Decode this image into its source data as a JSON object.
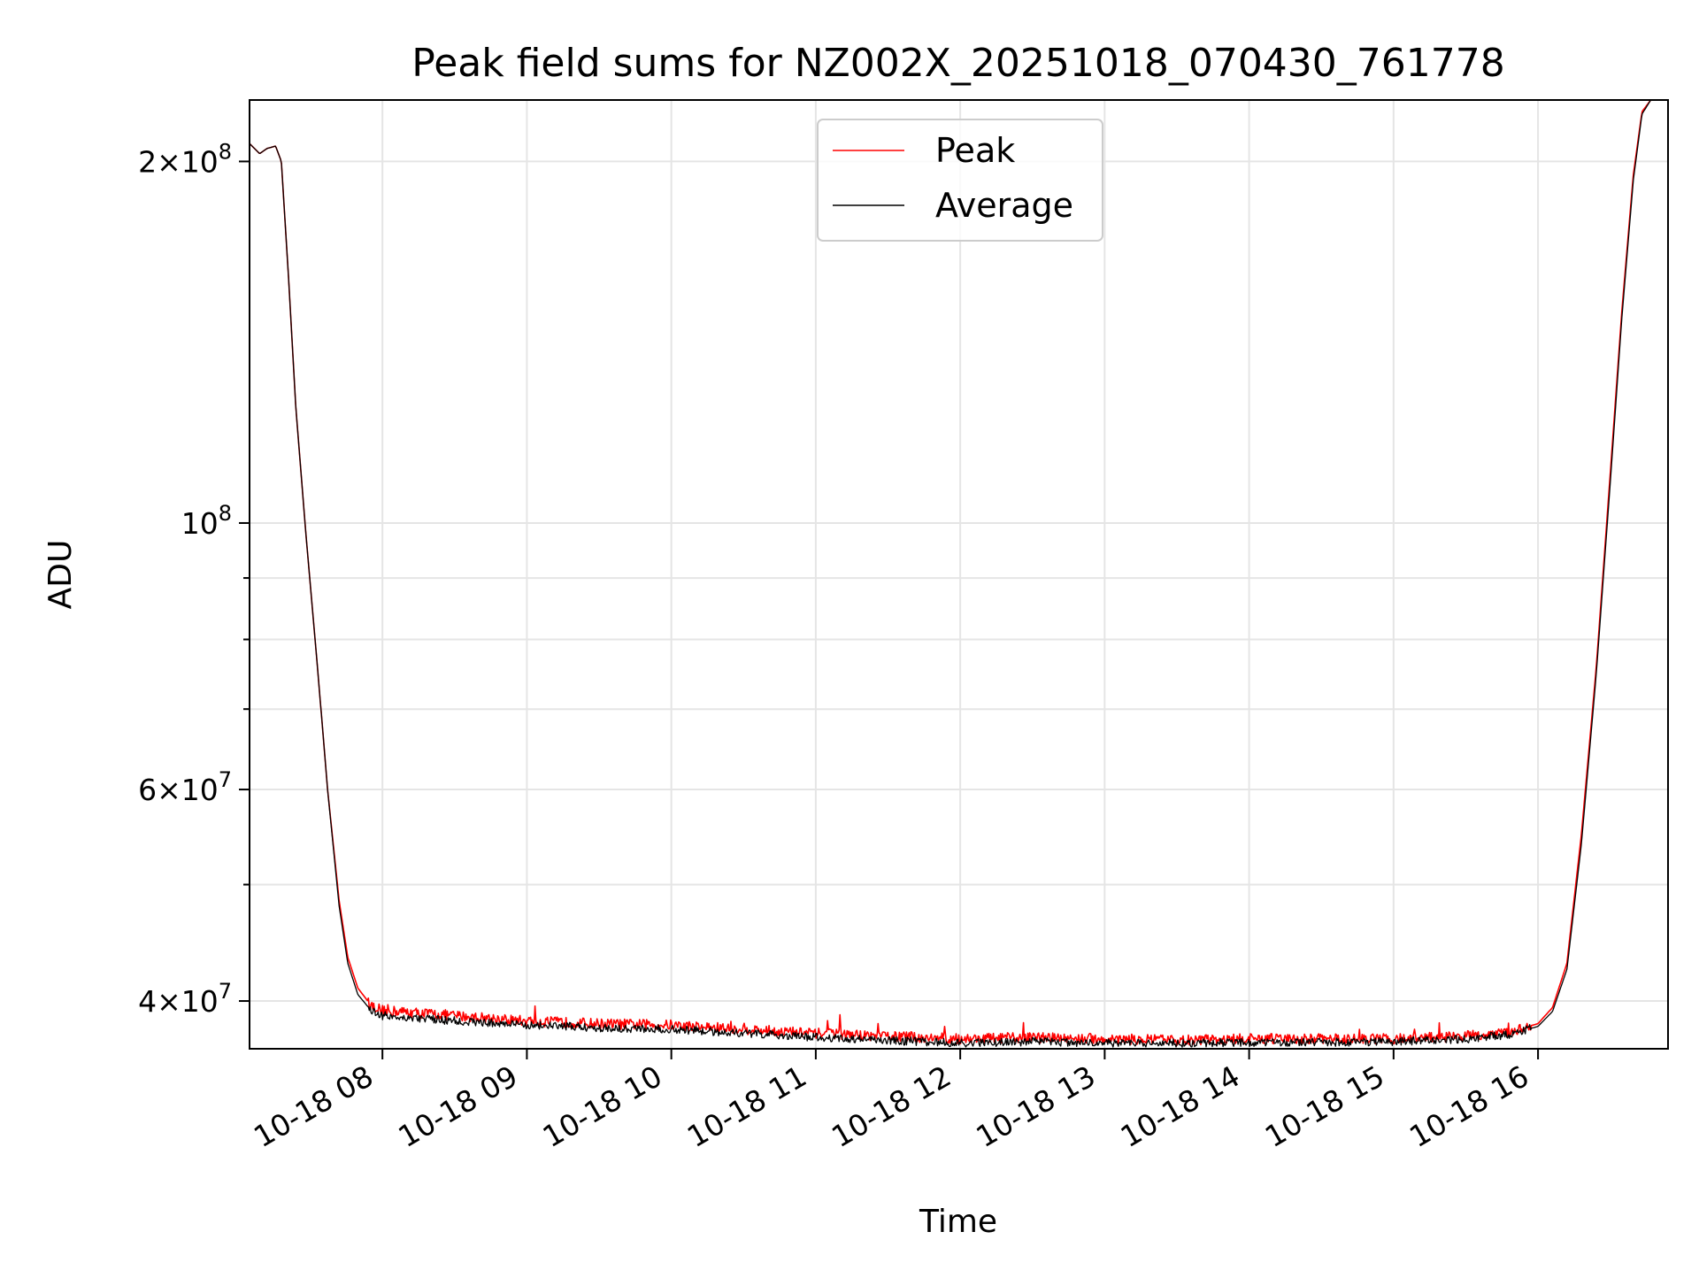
{
  "chart_data": {
    "type": "line",
    "title": "Peak field sums for NZ002X_20251018_070430_761778",
    "xlabel": "Time",
    "ylabel": "ADU",
    "yscale": "log",
    "grid": true,
    "legend_position": "top-center",
    "x_unit": "hours of 2025-10-18",
    "xlim": [
      7.08,
      16.9
    ],
    "ylim": [
      36500000,
      225000000
    ],
    "x_ticks": [
      {
        "value": 8,
        "label": "10-18 08"
      },
      {
        "value": 9,
        "label": "10-18 09"
      },
      {
        "value": 10,
        "label": "10-18 10"
      },
      {
        "value": 11,
        "label": "10-18 11"
      },
      {
        "value": 12,
        "label": "10-18 12"
      },
      {
        "value": 13,
        "label": "10-18 13"
      },
      {
        "value": 14,
        "label": "10-18 14"
      },
      {
        "value": 15,
        "label": "10-18 15"
      },
      {
        "value": 16,
        "label": "10-18 16"
      }
    ],
    "y_ticks_major": [
      {
        "value": 40000000,
        "mantissa": "4",
        "exponent": "7"
      },
      {
        "value": 60000000,
        "mantissa": "6",
        "exponent": "7"
      },
      {
        "value": 100000000,
        "mantissa": "",
        "exponent": "8"
      },
      {
        "value": 200000000,
        "mantissa": "2",
        "exponent": "8"
      }
    ],
    "y_ticks_minor": [
      50000000,
      70000000,
      80000000,
      90000000
    ],
    "series": [
      {
        "name": "Peak",
        "color": "#ff0000",
        "points": [
          [
            7.08,
            207000000
          ],
          [
            7.15,
            203000000
          ],
          [
            7.2,
            205000000
          ],
          [
            7.26,
            206000000
          ],
          [
            7.3,
            200000000
          ],
          [
            7.35,
            160000000
          ],
          [
            7.4,
            125000000
          ],
          [
            7.47,
            98000000
          ],
          [
            7.55,
            76000000
          ],
          [
            7.62,
            60000000
          ],
          [
            7.7,
            48500000
          ],
          [
            7.76,
            43500000
          ],
          [
            7.83,
            41000000
          ],
          [
            7.92,
            39700000
          ],
          [
            8.0,
            39300000
          ],
          [
            8.5,
            38900000
          ],
          [
            9.0,
            38500000
          ],
          [
            9.5,
            38300000
          ],
          [
            10.0,
            38200000
          ],
          [
            10.5,
            37900000
          ],
          [
            11.0,
            37600000
          ],
          [
            11.5,
            37400000
          ],
          [
            12.0,
            37200000
          ],
          [
            12.5,
            37300000
          ],
          [
            13.0,
            37200000
          ],
          [
            13.5,
            37100000
          ],
          [
            14.0,
            37200000
          ],
          [
            14.5,
            37200000
          ],
          [
            15.0,
            37200000
          ],
          [
            15.5,
            37400000
          ],
          [
            15.8,
            37700000
          ],
          [
            16.0,
            38300000
          ],
          [
            16.1,
            39500000
          ],
          [
            16.2,
            43000000
          ],
          [
            16.3,
            55000000
          ],
          [
            16.4,
            75000000
          ],
          [
            16.5,
            110000000
          ],
          [
            16.58,
            150000000
          ],
          [
            16.66,
            195000000
          ],
          [
            16.72,
            220000000
          ],
          [
            16.78,
            225000000
          ],
          [
            16.9,
            225000000
          ]
        ]
      },
      {
        "name": "Average",
        "color": "#000000",
        "points": [
          [
            7.08,
            207000000
          ],
          [
            7.15,
            203000000
          ],
          [
            7.2,
            205000000
          ],
          [
            7.26,
            206000000
          ],
          [
            7.3,
            200000000
          ],
          [
            7.35,
            160000000
          ],
          [
            7.4,
            125000000
          ],
          [
            7.47,
            98000000
          ],
          [
            7.55,
            76000000
          ],
          [
            7.62,
            60000000
          ],
          [
            7.7,
            48000000
          ],
          [
            7.76,
            43000000
          ],
          [
            7.83,
            40500000
          ],
          [
            7.92,
            39300000
          ],
          [
            8.0,
            38900000
          ],
          [
            8.5,
            38500000
          ],
          [
            9.0,
            38200000
          ],
          [
            9.5,
            38000000
          ],
          [
            10.0,
            37900000
          ],
          [
            10.5,
            37600000
          ],
          [
            11.0,
            37300000
          ],
          [
            11.5,
            37100000
          ],
          [
            12.0,
            36900000
          ],
          [
            12.5,
            37000000
          ],
          [
            13.0,
            36900000
          ],
          [
            13.5,
            36900000
          ],
          [
            14.0,
            36950000
          ],
          [
            14.5,
            36950000
          ],
          [
            15.0,
            37000000
          ],
          [
            15.5,
            37200000
          ],
          [
            15.8,
            37500000
          ],
          [
            16.0,
            38100000
          ],
          [
            16.1,
            39200000
          ],
          [
            16.2,
            42500000
          ],
          [
            16.3,
            54000000
          ],
          [
            16.4,
            74000000
          ],
          [
            16.5,
            108000000
          ],
          [
            16.58,
            148000000
          ],
          [
            16.66,
            193000000
          ],
          [
            16.72,
            219000000
          ],
          [
            16.78,
            225000000
          ],
          [
            16.9,
            225000000
          ]
        ]
      }
    ]
  }
}
